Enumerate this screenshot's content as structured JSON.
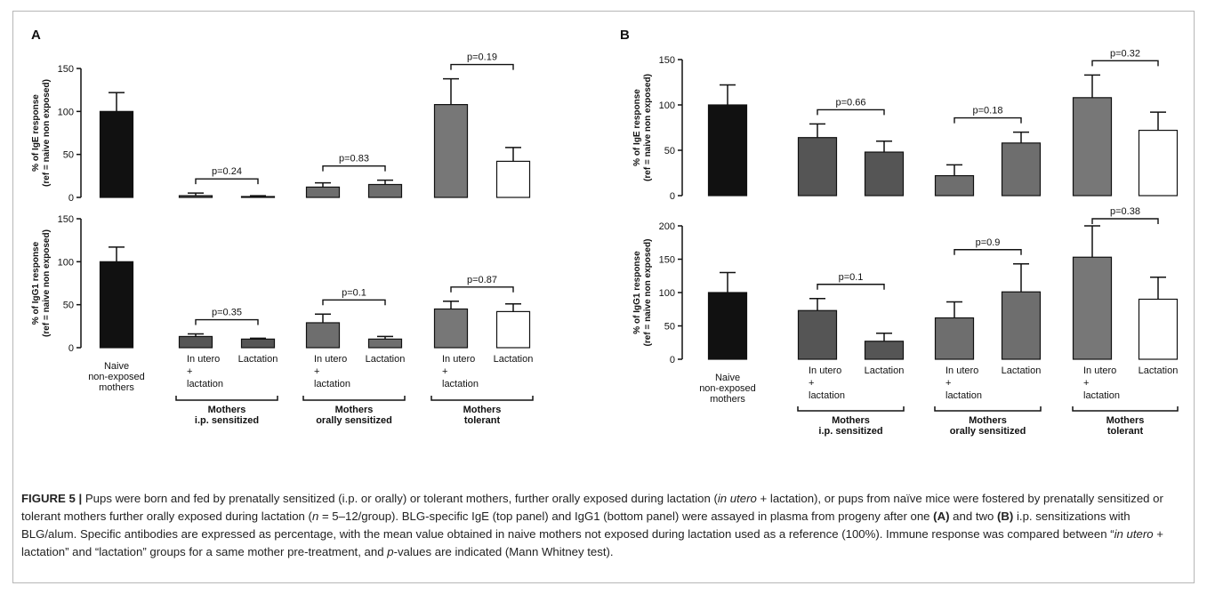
{
  "colors": {
    "naive": "#111111",
    "ip": "#555555",
    "orally": "#6e6e6e",
    "tolerant": "#777777",
    "lactation": "#ffffff",
    "frame": "#b7b7b7"
  },
  "categories": [
    "Naive non-exposed mothers",
    "Mothers i.p. sensitized - In utero + lactation",
    "Mothers i.p. sensitized - Lactation",
    "Mothers orally sensitized - In utero + lactation",
    "Mothers orally sensitized - Lactation",
    "Mothers tolerant - In utero + lactation",
    "Mothers tolerant - Lactation"
  ],
  "chart_data": [
    {
      "id": "A-IgE",
      "panel": "A",
      "type": "bar",
      "ylabel": [
        "% of IgE response",
        "(ref = naive non exposed)"
      ],
      "ylim": [
        0,
        150
      ],
      "yticks": [
        0,
        50,
        100,
        150
      ],
      "values": [
        100,
        2,
        1,
        12,
        15,
        108,
        42
      ],
      "errors": [
        22,
        3,
        1,
        5,
        5,
        30,
        16
      ],
      "pvalues": [
        {
          "label": "p=0.24",
          "from": 1,
          "to": 2
        },
        {
          "label": "p=0.83",
          "from": 3,
          "to": 4
        },
        {
          "label": "p=0.19",
          "from": 5,
          "to": 6
        }
      ]
    },
    {
      "id": "A-IgG1",
      "panel": "A",
      "type": "bar",
      "ylabel": [
        "% of IgG1 response",
        "(ref = naive non exposed)"
      ],
      "ylim": [
        0,
        150
      ],
      "yticks": [
        0,
        50,
        100,
        150
      ],
      "values": [
        100,
        13,
        10,
        29,
        10,
        45,
        42
      ],
      "errors": [
        17,
        3,
        1,
        10,
        3,
        9,
        9
      ],
      "pvalues": [
        {
          "label": "p=0.35",
          "from": 1,
          "to": 2
        },
        {
          "label": "p=0.1",
          "from": 3,
          "to": 4
        },
        {
          "label": "p=0.87",
          "from": 5,
          "to": 6
        }
      ]
    },
    {
      "id": "B-IgE",
      "panel": "B",
      "type": "bar",
      "ylabel": [
        "% of IgE response",
        "(ref = naive non exposed)"
      ],
      "ylim": [
        0,
        150
      ],
      "yticks": [
        0,
        50,
        100,
        150
      ],
      "values": [
        100,
        64,
        48,
        22,
        58,
        108,
        72
      ],
      "errors": [
        22,
        15,
        12,
        12,
        12,
        25,
        20
      ],
      "pvalues": [
        {
          "label": "p=0.66",
          "from": 1,
          "to": 2
        },
        {
          "label": "p=0.18",
          "from": 3,
          "to": 4
        },
        {
          "label": "p=0.32",
          "from": 5,
          "to": 6
        }
      ]
    },
    {
      "id": "B-IgG1",
      "panel": "B",
      "type": "bar",
      "ylabel": [
        "% of IgG1 response",
        "(ref = naive non exposed)"
      ],
      "ylim": [
        0,
        200
      ],
      "yticks": [
        0,
        50,
        100,
        150,
        200
      ],
      "values": [
        100,
        73,
        27,
        62,
        101,
        153,
        90
      ],
      "errors": [
        30,
        18,
        12,
        24,
        42,
        47,
        33
      ],
      "pvalues": [
        {
          "label": "p=0.1",
          "from": 1,
          "to": 2
        },
        {
          "label": "p=0.9",
          "from": 3,
          "to": 4
        },
        {
          "label": "p=0.38",
          "from": 5,
          "to": 6
        }
      ]
    }
  ],
  "panels": {
    "A": {
      "letter": "A"
    },
    "B": {
      "letter": "B"
    }
  },
  "x_labels": {
    "naive": [
      "Naive",
      "non-exposed",
      "mothers"
    ],
    "in_utero": [
      "In utero",
      "+",
      "lactation"
    ],
    "lactation": [
      "Lactation"
    ]
  },
  "group_labels": [
    [
      "Mothers",
      "i.p. sensitized"
    ],
    [
      "Mothers",
      "orally sensitized"
    ],
    [
      "Mothers",
      "tolerant"
    ]
  ],
  "caption": {
    "label": "FIGURE 5 |",
    "text_1": " Pups were born and fed by prenatally sensitized (i.p. or orally) or tolerant mothers, further orally exposed during lactation (",
    "text_1_italic": "in utero",
    "text_2": " + lactation), or pups from naïve mice were fostered by prenatally sensitized or tolerant mothers further orally exposed during lactation (",
    "text_2_italic": "n",
    "text_3": " = 5–12/group). BLG-specific IgE (top panel) and IgG1 (bottom panel) were assayed in plasma from progeny after one ",
    "bold_A": "(A)",
    "text_4": " and two ",
    "bold_B": "(B)",
    "text_5": " i.p. sensitizations with BLG/alum. Specific antibodies are expressed as percentage, with the mean value obtained in naive mothers not exposed during lactation used as a reference (100%). Immune response was compared between “",
    "text_5_italic": "in utero",
    "text_6": " + lactation” and “lactation” groups for a same mother pre-treatment, and ",
    "text_6_italic": "p",
    "text_7": "-values are indicated (Mann Whitney test)."
  }
}
